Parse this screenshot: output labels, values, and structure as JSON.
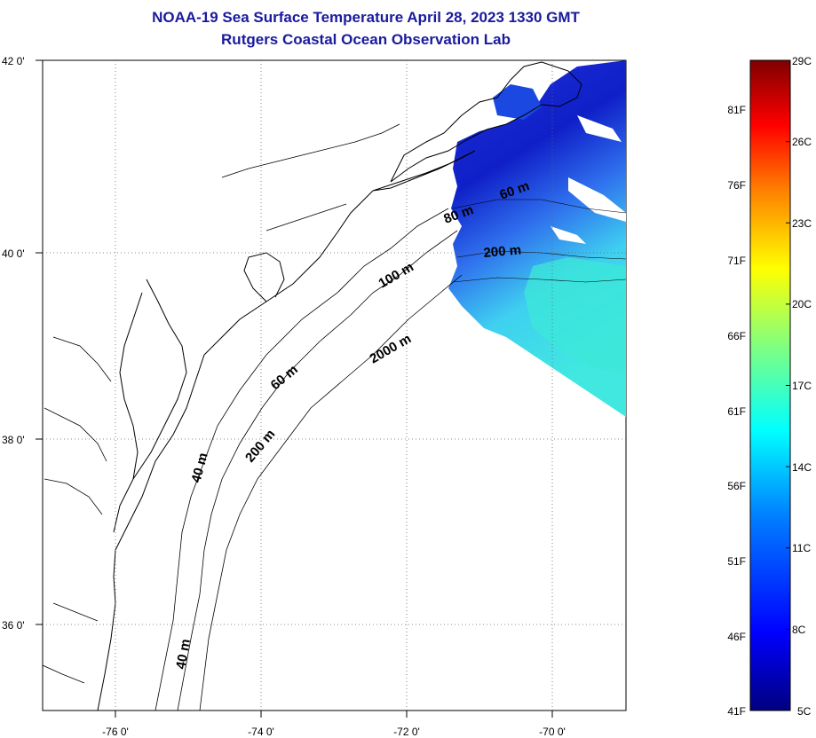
{
  "title": {
    "line1": "NOAA-19 Sea Surface Temperature April 28, 2023 1330 GMT",
    "line2": "Rutgers Coastal Ocean Observation Lab"
  },
  "lat_ticks": [
    "42 0'",
    "40 0'",
    "38 0'",
    "36 0'"
  ],
  "lon_ticks": [
    "-76 0'",
    "-74 0'",
    "-72 0'",
    "-70 0'"
  ],
  "isobath_labels": [
    "60 m",
    "80 m",
    "200 m",
    "100 m",
    "2000 m",
    "60 m",
    "200 m",
    "40 m",
    "40 m"
  ],
  "colorbar": {
    "celsius": [
      "29C",
      "26C",
      "23C",
      "20C",
      "17C",
      "14C",
      "11C",
      "8C",
      "5C"
    ],
    "fahrenheit": [
      "81F",
      "76F",
      "71F",
      "66F",
      "61F",
      "56F",
      "51F",
      "46F",
      "41F"
    ],
    "colors": [
      "#00007f",
      "#0000ff",
      "#0080ff",
      "#00ffff",
      "#80ff80",
      "#ffff00",
      "#ff8000",
      "#ff0000",
      "#7f0000"
    ]
  }
}
